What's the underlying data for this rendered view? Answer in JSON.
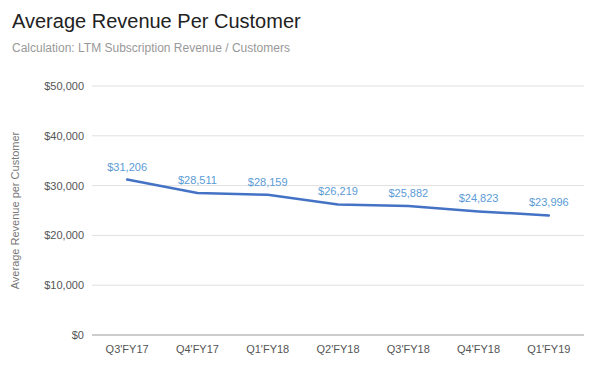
{
  "chart_data": {
    "type": "line",
    "title": "Average Revenue Per Customer",
    "subtitle": "Calculation: LTM Subscription Revenue / Customers",
    "ylabel": "Average Revenue per Customer",
    "categories": [
      "Q3'FY17",
      "Q4'FY17",
      "Q1'FY18",
      "Q2'FY18",
      "Q3'FY18",
      "Q4'FY18",
      "Q1'FY19"
    ],
    "values": [
      31206,
      28511,
      28159,
      26219,
      25882,
      24823,
      23996
    ],
    "value_labels": [
      "$31,206",
      "$28,511",
      "$28,159",
      "$26,219",
      "$25,882",
      "$24,823",
      "$23,996"
    ],
    "color": "#4472C4",
    "ylim": [
      0,
      50000
    ],
    "yticks": [
      {
        "value": 0,
        "label": "$0"
      },
      {
        "value": 10000,
        "label": "$10,000"
      },
      {
        "value": 20000,
        "label": "$20,000"
      },
      {
        "value": 30000,
        "label": "$30,000"
      },
      {
        "value": 40000,
        "label": "$40,000"
      },
      {
        "value": 50000,
        "label": "$50,000"
      }
    ],
    "grid": true,
    "data_labels": true
  }
}
